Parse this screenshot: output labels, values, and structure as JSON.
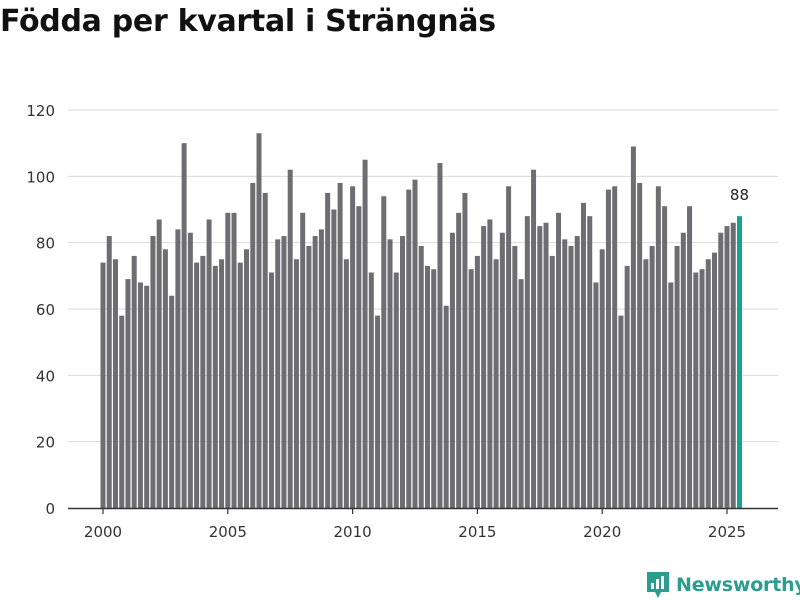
{
  "title": "Födda per kvartal i Strängnäs",
  "brand": {
    "name": "Newsworthy",
    "color": "#2a9d8f"
  },
  "colors": {
    "bar": "#6e6d71",
    "highlight": "#17a193",
    "grid": "#d9d9d9",
    "axis": "#333333",
    "text": "#333333"
  },
  "chart_data": {
    "type": "bar",
    "title": "Födda per kvartal i Strängnäs",
    "xlabel": "",
    "ylabel": "",
    "ylim": [
      0,
      120
    ],
    "yticks": [
      0,
      20,
      40,
      60,
      80,
      100,
      120
    ],
    "x_start": 2000,
    "xtick_labels": [
      "2000",
      "2005",
      "2010",
      "2015",
      "2020",
      "2025"
    ],
    "grid": true,
    "highlight_last": true,
    "last_label": "88",
    "values": [
      74,
      82,
      75,
      58,
      69,
      76,
      68,
      67,
      82,
      87,
      78,
      64,
      84,
      110,
      83,
      74,
      76,
      87,
      73,
      75,
      89,
      89,
      74,
      78,
      98,
      113,
      95,
      71,
      81,
      82,
      102,
      75,
      89,
      79,
      82,
      84,
      95,
      90,
      98,
      75,
      97,
      91,
      105,
      71,
      58,
      94,
      81,
      71,
      82,
      96,
      99,
      79,
      73,
      72,
      104,
      61,
      83,
      89,
      95,
      72,
      76,
      85,
      87,
      75,
      83,
      97,
      79,
      69,
      88,
      102,
      85,
      86,
      76,
      89,
      81,
      79,
      82,
      92,
      88,
      68,
      78,
      96,
      97,
      58,
      73,
      109,
      98,
      75,
      79,
      97,
      91,
      68,
      79,
      83,
      91,
      71,
      72,
      75,
      77,
      83,
      85,
      86,
      88
    ]
  }
}
